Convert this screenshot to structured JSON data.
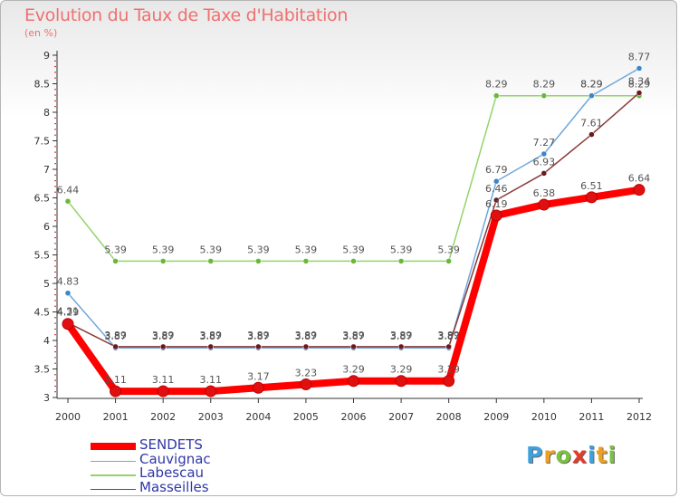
{
  "chart_data": {
    "type": "line",
    "title": "Evolution du Taux de Taxe d'Habitation",
    "subtitle": "(en %)",
    "categories": [
      "2000",
      "2001",
      "2002",
      "2003",
      "2004",
      "2005",
      "2006",
      "2007",
      "2008",
      "2009",
      "2010",
      "2011",
      "2012"
    ],
    "ylim": [
      3,
      9
    ],
    "yticks": [
      "3",
      "3.5",
      "4",
      "4.5",
      "5",
      "5.5",
      "6",
      "6.5",
      "7",
      "7.5",
      "8",
      "8.5",
      "9"
    ],
    "grid": false,
    "legend_position": "bottom-left",
    "series": [
      {
        "name": "SENDETS",
        "color": "#ff0000",
        "point_color": "#e01010",
        "values": [
          4.29,
          3.11,
          3.11,
          3.11,
          3.17,
          3.23,
          3.29,
          3.29,
          3.29,
          6.19,
          6.38,
          6.51,
          6.64
        ],
        "labels": [
          "4.29",
          "3.11",
          "3.11",
          "3.11",
          "3.17",
          "3.23",
          "3.29",
          "3.29",
          "3.29",
          "6.19",
          "6.38",
          "6.51",
          "6.64"
        ]
      },
      {
        "name": "Cauvignac",
        "color": "#6fa8dc",
        "point_color": "#3d85c6",
        "values": [
          4.83,
          3.87,
          3.87,
          3.87,
          3.87,
          3.87,
          3.87,
          3.87,
          3.87,
          6.79,
          7.27,
          8.29,
          8.77
        ],
        "labels": [
          "4.83",
          "3.87",
          "3.87",
          "3.87",
          "3.87",
          "3.87",
          "3.87",
          "3.87",
          "3.87",
          "6.79",
          "7.27",
          "8.29",
          "8.77"
        ]
      },
      {
        "name": "Labescau",
        "color": "#93d36b",
        "point_color": "#6ab838",
        "values": [
          6.44,
          5.39,
          5.39,
          5.39,
          5.39,
          5.39,
          5.39,
          5.39,
          5.39,
          8.29,
          8.29,
          8.29,
          8.29
        ],
        "labels": [
          "6.44",
          "5.39",
          "5.39",
          "5.39",
          "5.39",
          "5.39",
          "5.39",
          "5.39",
          "5.39",
          "8.29",
          "8.29",
          "8.29",
          "8.29"
        ]
      },
      {
        "name": "Masseilles",
        "color": "#8a3a3a",
        "point_color": "#6b1a1a",
        "values": [
          4.31,
          3.89,
          3.89,
          3.89,
          3.89,
          3.89,
          3.89,
          3.89,
          3.89,
          6.46,
          6.93,
          7.61,
          8.34
        ],
        "labels": [
          "4.31",
          "3.89",
          "3.89",
          "3.89",
          "3.89",
          "3.89",
          "3.89",
          "3.89",
          "3.89",
          "6.46",
          "6.93",
          "7.61",
          "8.34"
        ]
      }
    ]
  },
  "logo": {
    "letters": [
      "P",
      "r",
      "o",
      "x",
      "i",
      "t",
      "i"
    ],
    "colors": [
      "#3fa0de",
      "#f0a020",
      "#7cc242",
      "#e23c2c",
      "#3fa0de",
      "#f0a020",
      "#7cc242"
    ]
  }
}
